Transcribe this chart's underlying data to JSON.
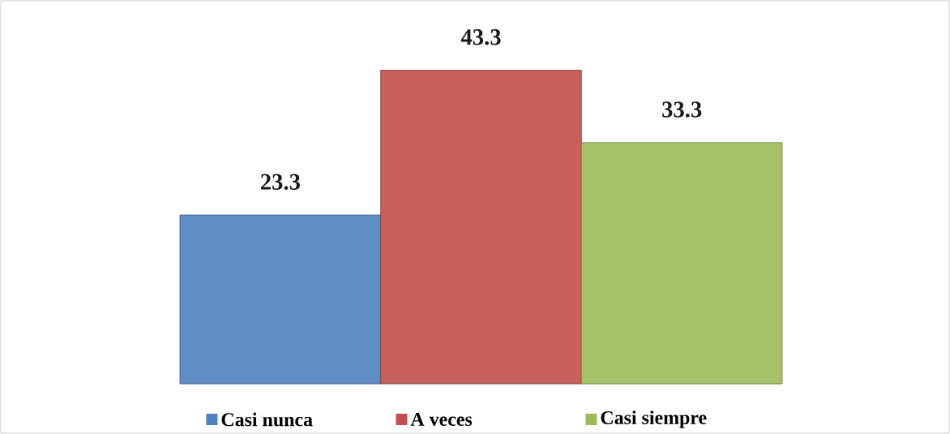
{
  "chart_data": {
    "type": "bar",
    "categories": [
      "Casi nunca",
      "A veces",
      "Casi siempre"
    ],
    "values": [
      23.3,
      43.3,
      33.3
    ],
    "colors": [
      "#4f81bd",
      "#c0504d",
      "#9bbb59"
    ],
    "data_labels": true
  }
}
